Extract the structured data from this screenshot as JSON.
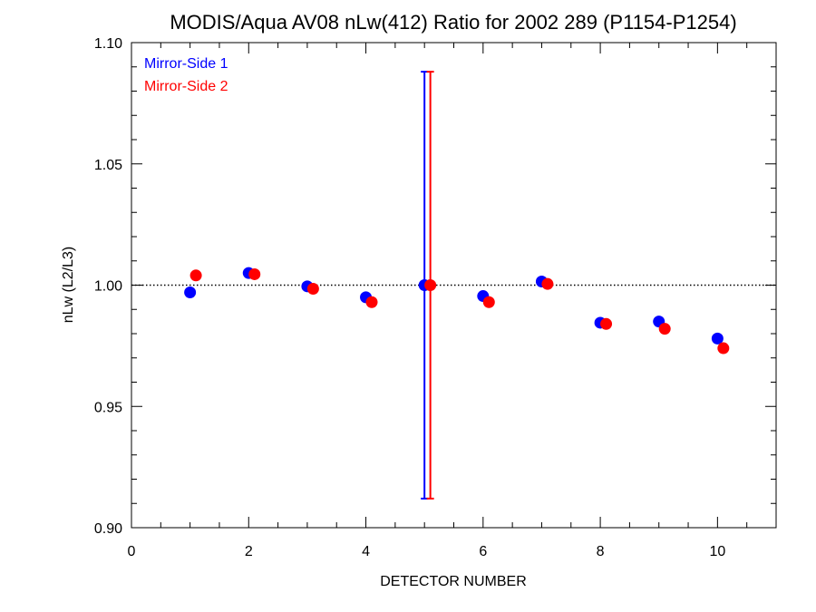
{
  "chart_data": {
    "type": "scatter",
    "title": "MODIS/Aqua AV08 nLw(412) Ratio for 2002 289 (P1154-P1254)",
    "xlabel": "DETECTOR NUMBER",
    "ylabel": "nLw (L2/L3)",
    "xlim": [
      0,
      11
    ],
    "ylim": [
      0.9,
      1.1
    ],
    "x_ticks": [
      0,
      2,
      4,
      6,
      8,
      10
    ],
    "x_tick_labels": [
      "0",
      "2",
      "4",
      "6",
      "8",
      "10"
    ],
    "y_ticks": [
      0.9,
      0.95,
      1.0,
      1.05,
      1.1
    ],
    "y_tick_labels": [
      "0.90",
      "0.95",
      "1.00",
      "1.05",
      "1.10"
    ],
    "reference_line": {
      "y": 1.0,
      "style": "dotted"
    },
    "legend_position": "top-left",
    "grid": false,
    "series": [
      {
        "name": "Mirror-Side 1",
        "color": "#0000ff",
        "x": [
          1,
          2,
          3,
          4,
          5,
          6,
          7,
          8,
          9,
          10
        ],
        "y": [
          0.997,
          1.005,
          0.9995,
          0.995,
          1.0,
          0.9955,
          1.0015,
          0.9845,
          0.985,
          0.978
        ],
        "error_bars": [
          {
            "x": 5,
            "low": 0.912,
            "high": 1.088
          }
        ]
      },
      {
        "name": "Mirror-Side 2",
        "color": "#ff0000",
        "x_offset": 0.1,
        "x": [
          1,
          2,
          3,
          4,
          5,
          6,
          7,
          8,
          9,
          10
        ],
        "y": [
          1.004,
          1.0045,
          0.9985,
          0.993,
          1.0,
          0.993,
          1.0005,
          0.984,
          0.982,
          0.974
        ],
        "error_bars": [
          {
            "x": 5,
            "low": 0.912,
            "high": 1.088
          }
        ]
      }
    ]
  }
}
